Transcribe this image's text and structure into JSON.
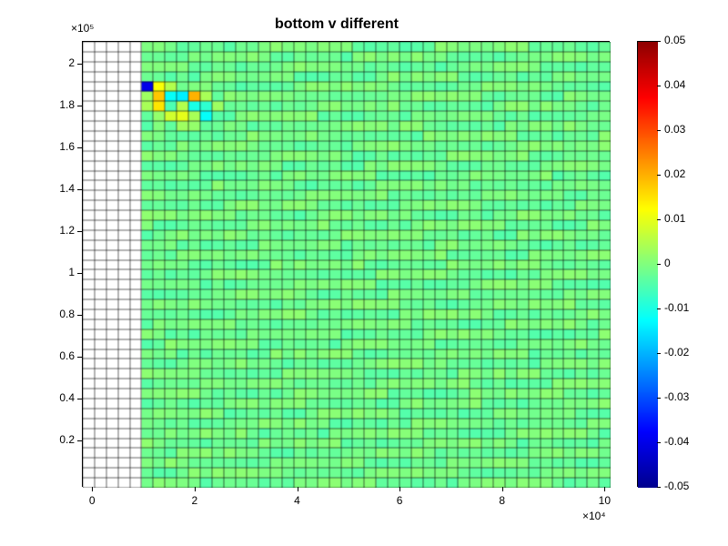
{
  "chart": {
    "type": "heatmap",
    "title": "bottom v different",
    "title_fontsize": 16,
    "title_fontweight": "bold",
    "background_color": "#ffffff",
    "grid": {
      "nx": 45,
      "ny": 45,
      "cell_line_color": "#000000",
      "cell_line_width": 0.6,
      "nan_color": "#ffffff",
      "base_color": "#55c655",
      "nan_cols": 5
    },
    "x_axis": {
      "min": -2000,
      "max": 101000,
      "ticks": [
        0,
        20000,
        40000,
        60000,
        80000,
        100000
      ],
      "tick_labels": [
        "0",
        "2",
        "4",
        "6",
        "8",
        "10"
      ],
      "exponent_label": "×10⁴",
      "fontsize": 12
    },
    "y_axis": {
      "min": -2000,
      "max": 211000,
      "ticks": [
        20000,
        40000,
        60000,
        80000,
        100000,
        120000,
        140000,
        160000,
        180000,
        200000
      ],
      "tick_labels": [
        "0.2",
        "0.4",
        "0.6",
        "0.8",
        "1",
        "1.2",
        "1.4",
        "1.6",
        "1.8",
        "2"
      ],
      "exponent_label": "×10⁵",
      "fontsize": 12
    },
    "colorbar": {
      "min": -0.05,
      "max": 0.05,
      "ticks": [
        -0.05,
        -0.04,
        -0.03,
        -0.02,
        -0.01,
        0,
        0.01,
        0.02,
        0.03,
        0.04,
        0.05
      ],
      "tick_labels": [
        "-0.05",
        "-0.04",
        "-0.03",
        "-0.02",
        "-0.01",
        "0",
        "0.01",
        "0.02",
        "0.03",
        "0.04",
        "0.05"
      ],
      "fontsize": 12,
      "colormap": "jet",
      "stops": [
        {
          "t": 0.0,
          "c": "#00008f"
        },
        {
          "t": 0.125,
          "c": "#0000ff"
        },
        {
          "t": 0.375,
          "c": "#00ffff"
        },
        {
          "t": 0.625,
          "c": "#ffff00"
        },
        {
          "t": 0.875,
          "c": "#ff0000"
        },
        {
          "t": 1.0,
          "c": "#8f0000"
        }
      ]
    },
    "anomalies": [
      {
        "col": 5,
        "row": 4,
        "v": -0.04
      },
      {
        "col": 6,
        "row": 4,
        "v": 0.012
      },
      {
        "col": 7,
        "row": 4,
        "v": 0.005
      },
      {
        "col": 5,
        "row": 5,
        "v": 0.003
      },
      {
        "col": 6,
        "row": 5,
        "v": 0.018
      },
      {
        "col": 7,
        "row": 5,
        "v": -0.012
      },
      {
        "col": 8,
        "row": 5,
        "v": -0.014
      },
      {
        "col": 9,
        "row": 5,
        "v": 0.02
      },
      {
        "col": 10,
        "row": 5,
        "v": 0.004
      },
      {
        "col": 5,
        "row": 6,
        "v": 0.004
      },
      {
        "col": 6,
        "row": 6,
        "v": 0.015
      },
      {
        "col": 7,
        "row": 6,
        "v": -0.005
      },
      {
        "col": 8,
        "row": 6,
        "v": 0.005
      },
      {
        "col": 9,
        "row": 6,
        "v": -0.01
      },
      {
        "col": 10,
        "row": 6,
        "v": -0.008
      },
      {
        "col": 11,
        "row": 6,
        "v": 0.003
      },
      {
        "col": 5,
        "row": 7,
        "v": -0.003
      },
      {
        "col": 6,
        "row": 7,
        "v": 0.002
      },
      {
        "col": 7,
        "row": 7,
        "v": 0.008
      },
      {
        "col": 8,
        "row": 7,
        "v": 0.01
      },
      {
        "col": 9,
        "row": 7,
        "v": 0.004
      },
      {
        "col": 10,
        "row": 7,
        "v": -0.012
      },
      {
        "col": 11,
        "row": 7,
        "v": -0.004
      },
      {
        "col": 7,
        "row": 8,
        "v": -0.003
      },
      {
        "col": 8,
        "row": 8,
        "v": 0.003
      },
      {
        "col": 9,
        "row": 8,
        "v": 0.002
      },
      {
        "col": 10,
        "row": 8,
        "v": -0.003
      },
      {
        "col": 11,
        "row": 8,
        "v": -0.002
      }
    ]
  }
}
